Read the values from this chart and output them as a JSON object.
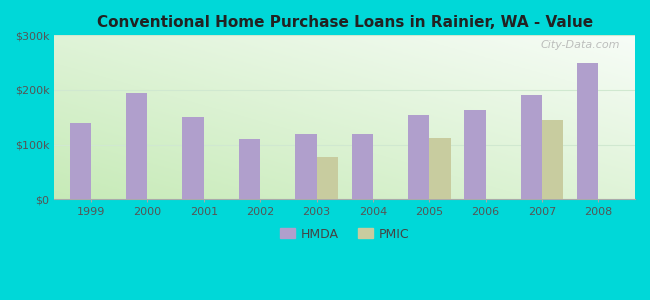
{
  "title": "Conventional Home Purchase Loans in Rainier, WA - Value",
  "years": [
    1999,
    2000,
    2001,
    2002,
    2003,
    2004,
    2005,
    2006,
    2007,
    2008
  ],
  "hmda": [
    140000,
    195000,
    150000,
    110000,
    120000,
    120000,
    155000,
    163000,
    190000,
    250000
  ],
  "pmic": [
    0,
    0,
    0,
    0,
    78000,
    0,
    113000,
    0,
    145000,
    0
  ],
  "hmda_color": "#b09fcc",
  "pmic_color": "#c8cc9f",
  "ylim": [
    0,
    300000
  ],
  "yticks": [
    0,
    100000,
    200000,
    300000
  ],
  "ytick_labels": [
    "$0",
    "$100k",
    "$200k",
    "$300k"
  ],
  "outer_bg": "#00d8d8",
  "plot_bg_bottom": "#c8e6c0",
  "plot_bg_top": "#f5faf5",
  "watermark": "City-Data.com",
  "bar_width": 0.38,
  "grid_color": "#d0e8d0"
}
